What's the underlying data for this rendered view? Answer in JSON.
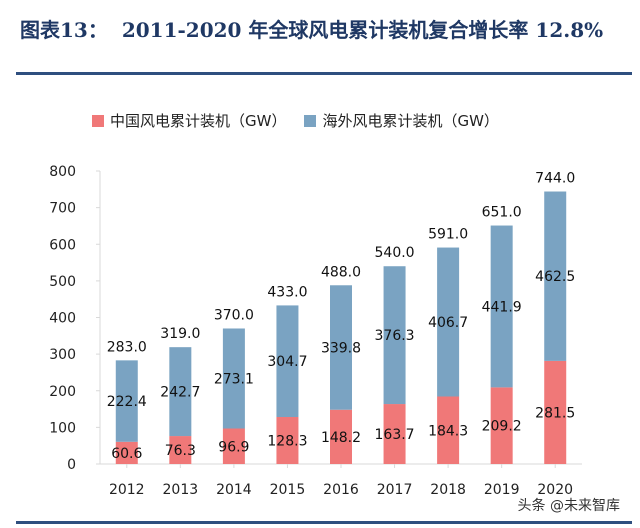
{
  "header": {
    "figure_label": "图表13：",
    "title_text": "2011-2020 年全球风电累计装机复合增长率 12.8%"
  },
  "watermark": "头条 @未来智库",
  "colors": {
    "china": "#f07878",
    "overseas": "#7aa3c2",
    "rule": "#2f4f7f",
    "axis": "#d9d9d9"
  },
  "chart_data": {
    "type": "bar",
    "stacked": true,
    "title": "2011-2020 年全球风电累计装机复合增长率 12.8%",
    "categories": [
      "2012",
      "2013",
      "2014",
      "2015",
      "2016",
      "2017",
      "2018",
      "2019",
      "2020"
    ],
    "series": [
      {
        "name": "中国风电累计装机（GW）",
        "values": [
          60.6,
          76.3,
          96.9,
          128.3,
          148.2,
          163.7,
          184.3,
          209.2,
          281.5
        ]
      },
      {
        "name": "海外风电累计装机（GW）",
        "values": [
          222.4,
          242.7,
          273.1,
          304.7,
          339.8,
          376.3,
          406.7,
          441.9,
          462.5
        ]
      }
    ],
    "totals": [
      "283.0",
      "319.0",
      "370.0",
      "433.0",
      "488.0",
      "540.0",
      "591.0",
      "651.0",
      "744.0"
    ],
    "china_labels": [
      "60.6",
      "76.3",
      "96.9",
      "128.3",
      "148.2",
      "163.7",
      "184.3",
      "209.2",
      "281.5"
    ],
    "overseas_labels": [
      "222.4",
      "242.7",
      "273.1",
      "304.7",
      "339.8",
      "376.3",
      "406.7",
      "441.9",
      "462.5"
    ],
    "yticks": [
      "0",
      "100",
      "200",
      "300",
      "400",
      "500",
      "600",
      "700",
      "800"
    ],
    "ylim": [
      0,
      800
    ],
    "xlabel": "",
    "ylabel": "",
    "legend_position": "top-left"
  }
}
